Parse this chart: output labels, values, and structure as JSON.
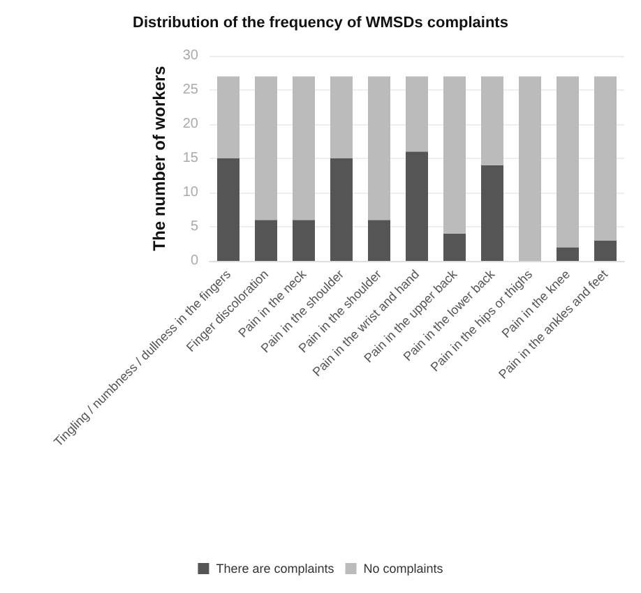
{
  "chart_data": {
    "type": "bar",
    "title": "Distribution of the frequency of WMSDs complaints",
    "ylabel": "The number of workers",
    "categories": [
      "Tingling / numbness / dullness in the fingers",
      "Finger discoloration",
      "Pain in the neck",
      "Pain in the shoulder",
      "Pain in the shoulder",
      "Pain in the wrist and hand",
      "Pain in the upper back",
      "Pain in the lower back",
      "Pain in the hips or thighs",
      "Pain in the knee",
      "Pain in the ankles and feet"
    ],
    "series": [
      {
        "name": "There are complaints",
        "color": "#555555",
        "values": [
          15,
          6,
          6,
          15,
          6,
          16,
          4,
          14,
          0,
          2,
          3
        ]
      },
      {
        "name": "No complaints",
        "color": "#bbbbbb",
        "values": [
          12,
          21,
          21,
          12,
          21,
          11,
          23,
          13,
          27,
          25,
          24
        ]
      }
    ],
    "stacked": true,
    "ylim": [
      0,
      30
    ],
    "yticks": [
      0,
      5,
      10,
      15,
      20,
      25,
      30
    ],
    "grid": "y",
    "legend": "bottom"
  }
}
